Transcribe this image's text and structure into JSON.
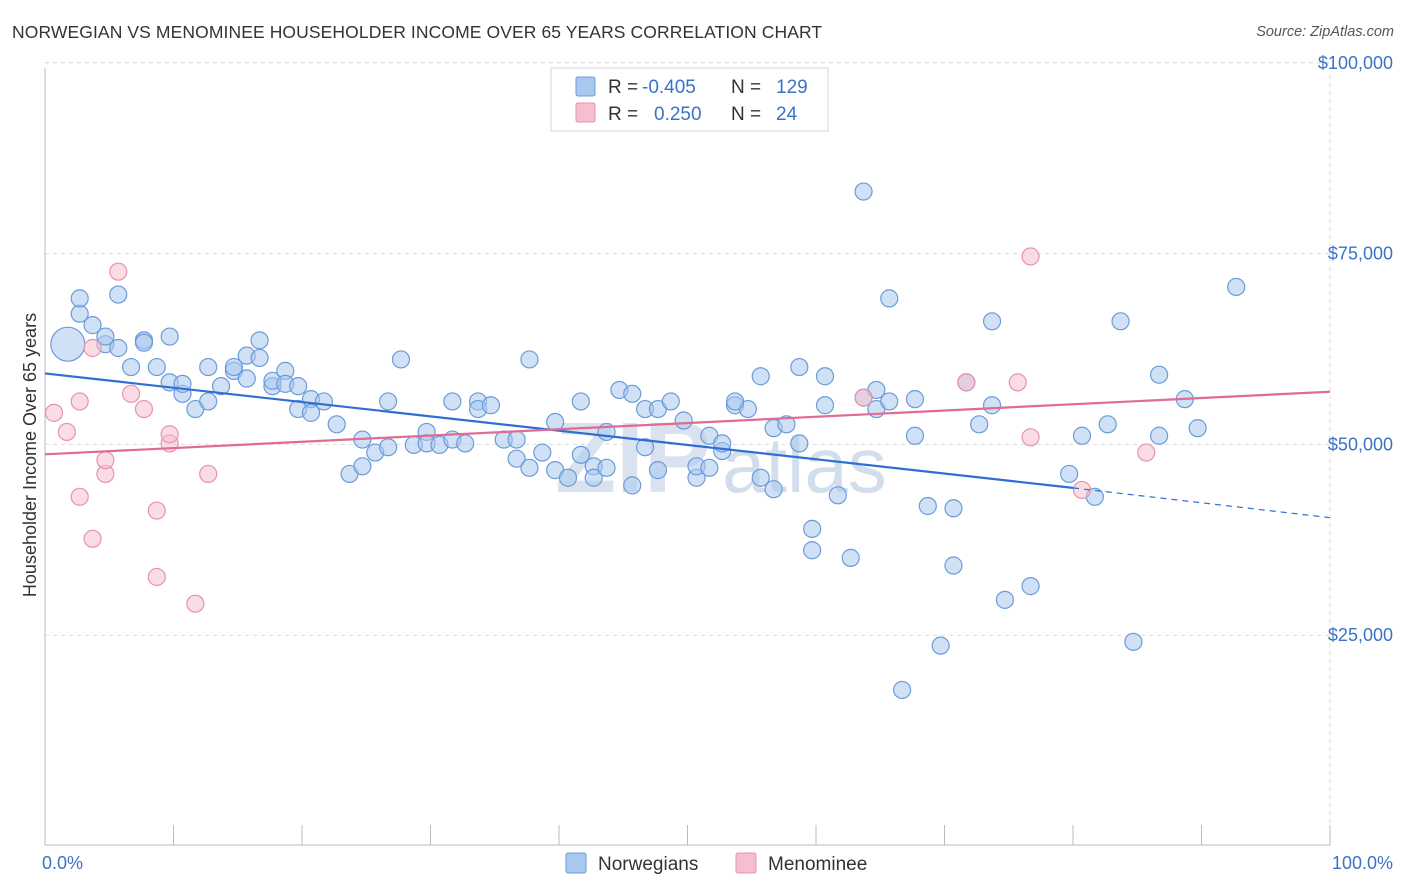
{
  "title": "NORWEGIAN VS MENOMINEE HOUSEHOLDER INCOME OVER 65 YEARS CORRELATION CHART",
  "source": "Source: ZipAtlas.com",
  "watermark": {
    "zip": "ZIP",
    "atlas": "atlas"
  },
  "legend": {
    "rows": [
      {
        "r_label": "R =",
        "r_value": "-0.405",
        "n_label": "N =",
        "n_value": "129",
        "color": "#a9c8ef",
        "stroke": "#6b9bd9"
      },
      {
        "r_label": "R =",
        "r_value": "0.250",
        "n_label": "N =",
        "n_value": "24",
        "color": "#f6bfd0",
        "stroke": "#e593ad"
      }
    ]
  },
  "chart_data": {
    "type": "scatter",
    "xlabel": "",
    "ylabel": "Householder Income Over 65 years",
    "xlim": [
      0,
      100
    ],
    "ylim": [
      0,
      105000
    ],
    "x_tick_labels": [
      "0.0%",
      "100.0%"
    ],
    "y_ticks": [
      25000,
      50000,
      75000,
      100000
    ],
    "y_tick_labels": [
      "$25,000",
      "$50,000",
      "$75,000",
      "$100,000"
    ],
    "grid": true,
    "legend_position": "bottom",
    "series": [
      {
        "name": "Norwegians",
        "color": "#a9c8ef",
        "stroke": "#6b9bd9",
        "trend": {
          "x0": 0,
          "y0": 59300,
          "x1": 80,
          "y1": 44300,
          "dashed_to_x": 100,
          "dashed_to_y": 40400,
          "color": "#2f6fd0"
        },
        "points": [
          [
            1,
            63000
          ],
          [
            2,
            67000
          ],
          [
            2,
            69000
          ],
          [
            3,
            65500
          ],
          [
            4,
            63000
          ],
          [
            4,
            64000
          ],
          [
            5,
            69500
          ],
          [
            5,
            62500
          ],
          [
            6,
            60000
          ],
          [
            7,
            63500
          ],
          [
            7,
            63200
          ],
          [
            8,
            60000
          ],
          [
            9,
            64000
          ],
          [
            9,
            58000
          ],
          [
            10,
            56500
          ],
          [
            10,
            57800
          ],
          [
            11,
            54500
          ],
          [
            12,
            55500
          ],
          [
            12,
            60000
          ],
          [
            13,
            57500
          ],
          [
            14,
            59500
          ],
          [
            14,
            60000
          ],
          [
            15,
            58500
          ],
          [
            15,
            61500
          ],
          [
            16,
            63500
          ],
          [
            16,
            61200
          ],
          [
            17,
            57500
          ],
          [
            17,
            58200
          ],
          [
            18,
            59500
          ],
          [
            18,
            57800
          ],
          [
            19,
            54500
          ],
          [
            19,
            57500
          ],
          [
            20,
            55800
          ],
          [
            20,
            54000
          ],
          [
            21,
            55500
          ],
          [
            22,
            52500
          ],
          [
            23,
            46000
          ],
          [
            24,
            47000
          ],
          [
            24,
            50500
          ],
          [
            25,
            48800
          ],
          [
            26,
            55500
          ],
          [
            26,
            49500
          ],
          [
            27,
            61000
          ],
          [
            28,
            49800
          ],
          [
            29,
            51500
          ],
          [
            29,
            50000
          ],
          [
            30,
            49800
          ],
          [
            31,
            55500
          ],
          [
            31,
            50500
          ],
          [
            32,
            50000
          ],
          [
            33,
            55500
          ],
          [
            33,
            54500
          ],
          [
            34,
            55000
          ],
          [
            35,
            50500
          ],
          [
            36,
            50500
          ],
          [
            36,
            48000
          ],
          [
            37,
            61000
          ],
          [
            37,
            46800
          ],
          [
            38,
            48800
          ],
          [
            39,
            52800
          ],
          [
            39,
            46500
          ],
          [
            40,
            45500
          ],
          [
            41,
            55500
          ],
          [
            41,
            48500
          ],
          [
            42,
            47000
          ],
          [
            42,
            45500
          ],
          [
            43,
            51500
          ],
          [
            43,
            46800
          ],
          [
            44,
            57000
          ],
          [
            45,
            56500
          ],
          [
            45,
            44500
          ],
          [
            46,
            49500
          ],
          [
            46,
            54500
          ],
          [
            47,
            54500
          ],
          [
            47,
            46500
          ],
          [
            48,
            55500
          ],
          [
            49,
            53000
          ],
          [
            50,
            45500
          ],
          [
            50,
            47000
          ],
          [
            51,
            51000
          ],
          [
            51,
            46800
          ],
          [
            52,
            49000
          ],
          [
            52,
            50000
          ],
          [
            53,
            55000
          ],
          [
            54,
            54500
          ],
          [
            55,
            45500
          ],
          [
            55,
            58800
          ],
          [
            56,
            52000
          ],
          [
            56,
            44000
          ],
          [
            58,
            60000
          ],
          [
            58,
            50000
          ],
          [
            59,
            38800
          ],
          [
            59,
            36000
          ],
          [
            60,
            55000
          ],
          [
            60,
            58800
          ],
          [
            61,
            43200
          ],
          [
            62,
            35000
          ],
          [
            63,
            56000
          ],
          [
            63,
            83000
          ],
          [
            64,
            54500
          ],
          [
            64,
            57000
          ],
          [
            65,
            69000
          ],
          [
            65,
            55500
          ],
          [
            67,
            51000
          ],
          [
            67,
            55800
          ],
          [
            68,
            41800
          ],
          [
            69,
            23500
          ],
          [
            70,
            41500
          ],
          [
            70,
            34000
          ],
          [
            71,
            58000
          ],
          [
            72,
            52500
          ],
          [
            73,
            66000
          ],
          [
            73,
            55000
          ],
          [
            74,
            29500
          ],
          [
            76,
            31300
          ],
          [
            79,
            46000
          ],
          [
            80,
            51000
          ],
          [
            81,
            43000
          ],
          [
            82,
            52500
          ],
          [
            83,
            66000
          ],
          [
            84,
            24000
          ],
          [
            86,
            59000
          ],
          [
            86,
            51000
          ],
          [
            88,
            55800
          ],
          [
            89,
            52000
          ],
          [
            92,
            70500
          ],
          [
            66,
            17700
          ],
          [
            53,
            55500
          ],
          [
            57,
            52500
          ]
        ]
      },
      {
        "name": "Menominee",
        "color": "#f6bfd0",
        "stroke": "#e593ad",
        "trend": {
          "x0": 0,
          "y0": 48700,
          "x1": 100,
          "y1": 56900,
          "color": "#e06b93"
        },
        "points": [
          [
            0,
            54000
          ],
          [
            1,
            51500
          ],
          [
            2,
            43000
          ],
          [
            2,
            55500
          ],
          [
            3,
            37500
          ],
          [
            3,
            62500
          ],
          [
            4,
            46000
          ],
          [
            4,
            47800
          ],
          [
            5,
            72500
          ],
          [
            6,
            56500
          ],
          [
            7,
            54500
          ],
          [
            8,
            32500
          ],
          [
            8,
            41200
          ],
          [
            9,
            50000
          ],
          [
            9,
            51200
          ],
          [
            11,
            29000
          ],
          [
            12,
            46000
          ],
          [
            63,
            56000
          ],
          [
            71,
            58000
          ],
          [
            75,
            58000
          ],
          [
            76,
            50800
          ],
          [
            76,
            74500
          ],
          [
            80,
            43900
          ],
          [
            85,
            48800
          ]
        ]
      }
    ]
  }
}
